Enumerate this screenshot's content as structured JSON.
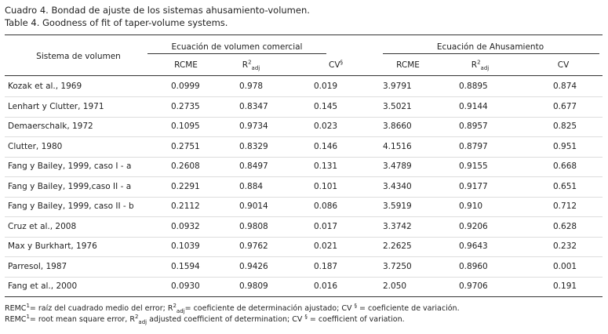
{
  "header": {
    "title_es": "Cuadro 4. Bondad de ajuste de los sistemas ahusamiento-volumen.",
    "title_en": "Table 4. Goodness of fit of taper-volume systems."
  },
  "table": {
    "row_header": "Sistema de volumen",
    "groups": [
      "Ecuación de volumen comercial",
      "Ecuación de Ahusamiento"
    ],
    "columns": [
      {
        "base": "RCME"
      },
      {
        "base": "R",
        "sup": "2",
        "sub": "adj"
      },
      {
        "base": "CV",
        "sup": "§"
      },
      {
        "base": "RCME"
      },
      {
        "base": "R",
        "sup": "2",
        "sub": "adj"
      },
      {
        "base": "CV"
      }
    ],
    "rows": [
      [
        "Kozak et al., 1969",
        "0.0999",
        "0.978",
        "0.019",
        "3.9791",
        "0.8895",
        "0.874"
      ],
      [
        "Lenhart y Clutter, 1971",
        "0.2735",
        "0.8347",
        "0.145",
        "3.5021",
        "0.9144",
        "0.677"
      ],
      [
        "Demaerschalk, 1972",
        "0.1095",
        "0.9734",
        "0.023",
        "3.8660",
        "0.8957",
        "0.825"
      ],
      [
        "Clutter, 1980",
        "0.2751",
        "0.8329",
        "0.146",
        "4.1516",
        "0.8797",
        "0.951"
      ],
      [
        "Fang y Bailey, 1999, caso I - a",
        "0.2608",
        "0.8497",
        "0.131",
        "3.4789",
        "0.9155",
        "0.668"
      ],
      [
        "Fang y Bailey, 1999,caso II - a",
        "0.2291",
        "0.884",
        "0.101",
        "3.4340",
        "0.9177",
        "0.651"
      ],
      [
        "Fang y Bailey, 1999, caso II - b",
        "0.2112",
        "0.9014",
        "0.086",
        "3.5919",
        "0.910",
        "0.712"
      ],
      [
        "Cruz et al., 2008",
        "0.0932",
        "0.9808",
        "0.017",
        "3.3742",
        "0.9206",
        "0.628"
      ],
      [
        "Max y Burkhart, 1976",
        "0.1039",
        "0.9762",
        "0.021",
        "2.2625",
        "0.9643",
        "0.232"
      ],
      [
        "Parresol, 1987",
        "0.1594",
        "0.9426",
        "0.187",
        "3.7250",
        "0.8960",
        "0.001"
      ],
      [
        "Fang et al., 2000",
        "0.0930",
        "0.9809",
        "0.016",
        "2.050",
        "0.9706",
        "0.191"
      ]
    ]
  },
  "footnotes": [
    [
      {
        "t": "REMC"
      },
      {
        "sup": "1"
      },
      {
        "t": "= raíz del cuadrado medio del error; R"
      },
      {
        "sup": "2"
      },
      {
        "sub": "adj"
      },
      {
        "t": "= coeficiente de determinación ajustado; CV "
      },
      {
        "sup": "§"
      },
      {
        "t": " = coeficiente de variación."
      }
    ],
    [
      {
        "t": "REMC"
      },
      {
        "sup": "1"
      },
      {
        "t": "= root mean square error, R"
      },
      {
        "sup": "2"
      },
      {
        "sub": "adj"
      },
      {
        "t": " adjusted coefficient of determination; CV "
      },
      {
        "sup": "§"
      },
      {
        "t": " = coefficient of variation."
      }
    ]
  ]
}
